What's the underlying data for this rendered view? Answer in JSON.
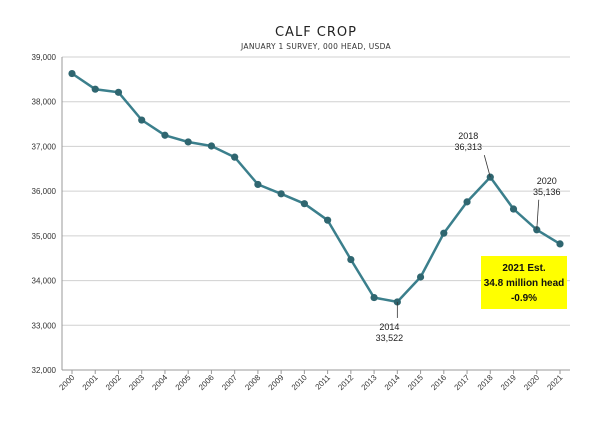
{
  "colors": {
    "line": "#3b7f8c",
    "marker": "#2f6670",
    "grid": "#d0d0d0",
    "axis": "#999999",
    "estimate_box": "#ffff00"
  },
  "chart_data": {
    "type": "line",
    "title": "CALF CROP",
    "subtitle": "JANUARY 1 SURVEY, 000 HEAD, USDA",
    "xlabel": "",
    "ylabel": "",
    "ylim": [
      32000,
      39000
    ],
    "yticks": [
      "32,000",
      "33,000",
      "34,000",
      "35,000",
      "36,000",
      "37,000",
      "38,000",
      "39,000"
    ],
    "yticks_values": [
      32000,
      33000,
      34000,
      35000,
      36000,
      37000,
      38000,
      39000
    ],
    "grid": "horizontal",
    "categories": [
      "2000",
      "2001",
      "2002",
      "2003",
      "2004",
      "2005",
      "2006",
      "2007",
      "2008",
      "2009",
      "2010",
      "2011",
      "2012",
      "2013",
      "2014",
      "2015",
      "2016",
      "2017",
      "2018",
      "2019",
      "2020",
      "2021"
    ],
    "values": [
      38630,
      38280,
      38210,
      37590,
      37250,
      37100,
      37010,
      36760,
      36150,
      35940,
      35720,
      35350,
      34470,
      33620,
      33522,
      34080,
      35060,
      35760,
      36313,
      35600,
      35136,
      34820
    ],
    "annotations": [
      {
        "index": 18,
        "year": "2018",
        "value": "36,313"
      },
      {
        "index": 14,
        "year": "2014",
        "value": "33,522"
      },
      {
        "index": 20,
        "year": "2020",
        "value": "35,136"
      }
    ],
    "estimate_box": {
      "line1": "2021 Est.",
      "line2": "34.8 million head",
      "line3": "-0.9%"
    }
  }
}
